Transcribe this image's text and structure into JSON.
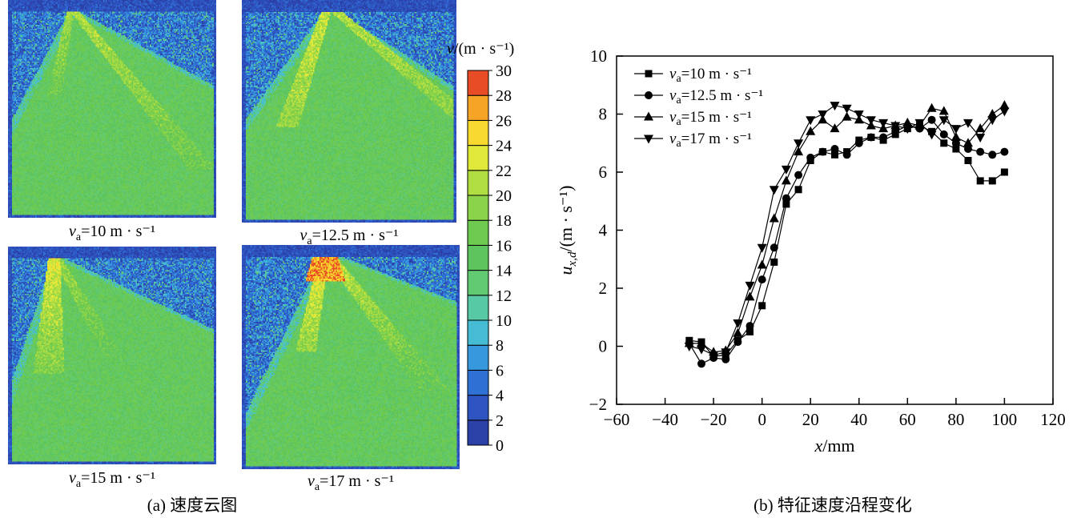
{
  "panel_a": {
    "caption": "(a) 速度云图",
    "images": [
      {
        "name": "va-10",
        "label": {
          "var": "v",
          "sub": "a",
          "rest": "=10 m · s⁻¹"
        }
      },
      {
        "name": "va-12.5",
        "label": {
          "var": "v",
          "sub": "a",
          "rest": "=12.5 m · s⁻¹"
        }
      },
      {
        "name": "va-15",
        "label": {
          "var": "v",
          "sub": "a",
          "rest": "=15 m · s⁻¹"
        }
      },
      {
        "name": "va-17",
        "label": {
          "var": "v",
          "sub": "a",
          "rest": "=17 m · s⁻¹"
        }
      }
    ],
    "colorbar": {
      "title": {
        "var": "v",
        "rest": "/(m · s⁻¹)"
      },
      "ticks_top_to_bottom": [
        30,
        28,
        26,
        24,
        22,
        20,
        18,
        16,
        14,
        12,
        10,
        8,
        6,
        4,
        2,
        0
      ],
      "band_colors_bottom_to_top": [
        "#2c41a7",
        "#2d54c0",
        "#2f70d4",
        "#3798dd",
        "#45bcd3",
        "#57c9a4",
        "#63ca74",
        "#5dc45e",
        "#6fcb50",
        "#8bd348",
        "#b0dd41",
        "#e0e93a",
        "#f8d92f",
        "#f5a426",
        "#e74c25"
      ]
    }
  },
  "panel_b": {
    "caption": "(b) 特征速度沿程变化"
  },
  "chart_data": {
    "type": "scatter",
    "title": "",
    "xlabel": "x/mm",
    "ylabel": "u_x,d/(m · s⁻¹)",
    "xlabel_parts": {
      "var": "x",
      "rest": "/mm"
    },
    "ylabel_parts": {
      "var": "u",
      "sub": "x,d",
      "rest": "/(m · s⁻¹)"
    },
    "xlim": [
      -60,
      120
    ],
    "ylim": [
      -2,
      10
    ],
    "xticks": [
      -60,
      -40,
      -20,
      0,
      20,
      40,
      60,
      80,
      100,
      120
    ],
    "yticks": [
      -2,
      0,
      2,
      4,
      6,
      8,
      10
    ],
    "legend_position": "top-left",
    "grid": false,
    "x": [
      -30,
      -25,
      -20,
      -15,
      -10,
      -5,
      0,
      5,
      10,
      15,
      20,
      25,
      30,
      35,
      40,
      45,
      50,
      55,
      60,
      65,
      70,
      75,
      80,
      85,
      90,
      95,
      100
    ],
    "series": [
      {
        "name": "va=10 m·s⁻¹",
        "marker": "square",
        "label": {
          "var": "v",
          "sub": "a",
          "rest": "=10 m · s⁻¹"
        },
        "values": [
          0.2,
          0.15,
          -0.35,
          -0.3,
          0.2,
          0.5,
          1.4,
          2.9,
          4.9,
          5.4,
          6.4,
          6.7,
          6.6,
          6.7,
          7.1,
          7.2,
          7.1,
          7.3,
          7.5,
          7.6,
          7.4,
          7.0,
          6.8,
          6.4,
          5.7,
          5.7,
          6.0
        ]
      },
      {
        "name": "va=12.5 m·s⁻¹",
        "marker": "circle",
        "label": {
          "var": "v",
          "sub": "a",
          "rest": "=12.5 m · s⁻¹"
        },
        "values": [
          0.1,
          -0.6,
          -0.4,
          -0.45,
          0.15,
          0.7,
          2.3,
          3.4,
          5.1,
          5.9,
          6.5,
          6.7,
          6.8,
          6.6,
          7.0,
          7.2,
          7.2,
          7.4,
          7.6,
          7.5,
          7.8,
          7.3,
          7.0,
          6.8,
          6.7,
          6.6,
          6.7
        ]
      },
      {
        "name": "va=15 m·s⁻¹",
        "marker": "triangle-up",
        "label": {
          "var": "v",
          "sub": "a",
          "rest": "=15 m · s⁻¹"
        },
        "values": [
          0.1,
          0.1,
          -0.2,
          -0.15,
          0.45,
          1.7,
          2.8,
          4.4,
          5.7,
          6.7,
          7.4,
          7.8,
          7.5,
          7.9,
          7.8,
          7.6,
          7.5,
          7.6,
          7.7,
          7.6,
          8.2,
          8.1,
          7.2,
          7.0,
          7.5,
          8.0,
          8.3
        ]
      },
      {
        "name": "va=17 m·s⁻¹",
        "marker": "triangle-down",
        "label": {
          "var": "v",
          "sub": "a",
          "rest": "=17 m · s⁻¹"
        },
        "values": [
          0.0,
          -0.1,
          -0.3,
          -0.2,
          0.8,
          2.1,
          3.4,
          5.4,
          6.1,
          7.0,
          7.8,
          8.0,
          8.3,
          8.2,
          8.0,
          7.8,
          7.7,
          7.6,
          7.5,
          7.7,
          7.3,
          7.8,
          7.5,
          7.7,
          7.2,
          7.8,
          8.1
        ]
      }
    ]
  }
}
